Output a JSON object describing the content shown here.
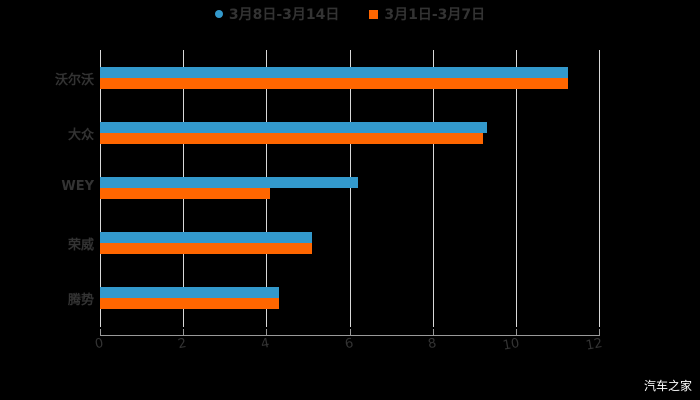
{
  "chart_data": {
    "type": "bar",
    "orientation": "horizontal",
    "title": "",
    "xlabel": "",
    "ylabel": "",
    "categories": [
      "沃尔沃",
      "大众",
      "WEY",
      "荣威",
      "腾势"
    ],
    "series": [
      {
        "name": "3月8日-3月14日",
        "color": "#3399cc",
        "values": [
          11.25,
          9.3,
          6.2,
          5.1,
          4.3
        ]
      },
      {
        "name": "3月1日-3月7日",
        "color": "#ff6600",
        "values": [
          11.25,
          9.2,
          4.1,
          5.1,
          4.3
        ]
      }
    ],
    "xlim": [
      0,
      12
    ],
    "xticks": [
      "0",
      "2",
      "4",
      "6",
      "8",
      "10",
      "12"
    ],
    "grid": true,
    "legend_position": "top"
  },
  "legend": {
    "items": [
      {
        "label": "3月8日-3月14日",
        "color": "#3399cc",
        "shape": "circle"
      },
      {
        "label": "3月1日-3月7日",
        "color": "#ff6600",
        "shape": "square"
      }
    ]
  },
  "watermark": "汽车之家"
}
